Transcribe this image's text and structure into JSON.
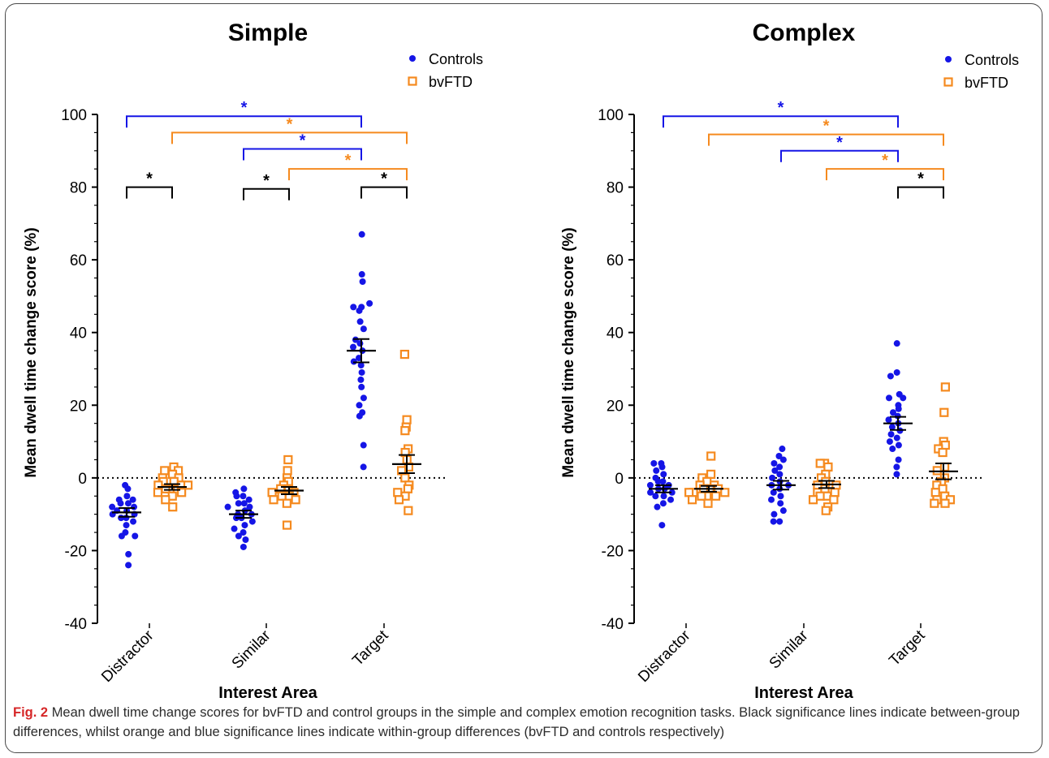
{
  "caption": {
    "figno": "Fig. 2",
    "text": "Mean dwell time change scores for bvFTD and control groups in the simple and complex emotion recognition tasks. Black significance lines indicate between-group differences, whilst orange and blue significance lines indicate within-group differences (bvFTD and controls respectively)"
  },
  "colors": {
    "controls": "#1515e6",
    "bvftd": "#f58a1f",
    "between": "#000000",
    "text": "#000000"
  },
  "chart_data": [
    {
      "type": "scatter",
      "title": "Simple",
      "xlabel": "Interest Area",
      "ylabel": "Mean dwell time change score (%)",
      "categories": [
        "Distractor",
        "Similar",
        "Target"
      ],
      "ylim": [
        -40,
        100
      ],
      "yticks": [
        -40,
        -20,
        0,
        20,
        40,
        60,
        80,
        100
      ],
      "reference_line_y": 0,
      "legend": {
        "position": "top-right",
        "entries": [
          "Controls",
          "bvFTD"
        ]
      },
      "series": [
        {
          "name": "Controls",
          "marker": "filled-circle",
          "values": {
            "Distractor": [
              -2,
              -3,
              -5,
              -6,
              -6,
              -7,
              -7,
              -8,
              -8,
              -9,
              -9,
              -10,
              -10,
              -11,
              -11,
              -12,
              -13,
              -15,
              -16,
              -16,
              -21,
              -24
            ],
            "Similar": [
              -3,
              -4,
              -5,
              -5,
              -6,
              -7,
              -7,
              -8,
              -8,
              -9,
              -10,
              -10,
              -11,
              -11,
              -12,
              -13,
              -14,
              -15,
              -16,
              -17,
              -19
            ],
            "Target": [
              3,
              9,
              17,
              18,
              20,
              22,
              25,
              27,
              29,
              31,
              32,
              33,
              35,
              36,
              37,
              38,
              41,
              43,
              46,
              47,
              47,
              48,
              54,
              56,
              67
            ]
          },
          "mean": {
            "Distractor": -9.5,
            "Similar": -10,
            "Target": 35
          },
          "sem": {
            "Distractor": 1.2,
            "Similar": 1.0,
            "Target": 3.2
          }
        },
        {
          "name": "bvFTD",
          "marker": "open-square",
          "values": {
            "Distractor": [
              3,
              2,
              2,
              1,
              0,
              0,
              -1,
              -1,
              -2,
              -2,
              -2,
              -3,
              -3,
              -4,
              -4,
              -5,
              -6,
              -8
            ],
            "Similar": [
              5,
              2,
              0,
              -1,
              -2,
              -3,
              -3,
              -4,
              -4,
              -5,
              -5,
              -6,
              -6,
              -7,
              -13
            ],
            "Target": [
              34,
              16,
              14,
              13,
              8,
              7,
              5,
              3,
              2,
              0,
              -2,
              -3,
              -4,
              -5,
              -6,
              -9
            ]
          },
          "mean": {
            "Distractor": -2.5,
            "Similar": -3.5,
            "Target": 3.8
          },
          "sem": {
            "Distractor": 0.8,
            "Similar": 1.0,
            "Target": 2.5
          }
        }
      ],
      "significance": [
        {
          "from": "Controls@Distractor",
          "to": "Controls@Target",
          "y": 99.5,
          "color": "controls",
          "label": "*"
        },
        {
          "from": "bvFTD@Distractor",
          "to": "bvFTD@Target",
          "y": 95,
          "color": "bvftd",
          "label": "*"
        },
        {
          "from": "Controls@Similar",
          "to": "Controls@Target",
          "y": 90.5,
          "color": "controls",
          "label": "*"
        },
        {
          "from": "bvFTD@Similar",
          "to": "bvFTD@Target",
          "y": 85,
          "color": "bvftd",
          "label": "*"
        },
        {
          "from": "Controls@Distractor",
          "to": "bvFTD@Distractor",
          "y": 80,
          "color": "between",
          "label": "*"
        },
        {
          "from": "Controls@Similar",
          "to": "bvFTD@Similar",
          "y": 79.5,
          "color": "between",
          "label": "*"
        },
        {
          "from": "Controls@Target",
          "to": "bvFTD@Target",
          "y": 80,
          "color": "between",
          "label": "*"
        }
      ]
    },
    {
      "type": "scatter",
      "title": "Complex",
      "xlabel": "Interest Area",
      "ylabel": "Mean dwell time change score (%)",
      "categories": [
        "Distractor",
        "Similar",
        "Target"
      ],
      "ylim": [
        -40,
        100
      ],
      "yticks": [
        -40,
        -20,
        0,
        20,
        40,
        60,
        80,
        100
      ],
      "reference_line_y": 0,
      "legend": {
        "position": "top-right",
        "entries": [
          "Controls",
          "bvFTD"
        ]
      },
      "series": [
        {
          "name": "Controls",
          "marker": "filled-circle",
          "values": {
            "Distractor": [
              4,
              4,
              3,
              2,
              1,
              0,
              -1,
              -1,
              -2,
              -2,
              -3,
              -3,
              -4,
              -4,
              -5,
              -5,
              -6,
              -7,
              -8,
              -13
            ],
            "Similar": [
              8,
              6,
              5,
              4,
              3,
              2,
              1,
              0,
              -1,
              -2,
              -2,
              -3,
              -4,
              -5,
              -6,
              -7,
              -9,
              -10,
              -12,
              -12
            ],
            "Target": [
              37,
              29,
              28,
              23,
              22,
              22,
              20,
              19,
              18,
              17,
              16,
              15,
              14,
              13,
              12,
              11,
              10,
              9,
              8,
              5,
              3,
              1
            ]
          },
          "mean": {
            "Distractor": -3,
            "Similar": -2,
            "Target": 15
          },
          "sem": {
            "Distractor": 1.0,
            "Similar": 1.2,
            "Target": 1.8
          }
        },
        {
          "name": "bvFTD",
          "marker": "open-square",
          "values": {
            "Distractor": [
              6,
              1,
              0,
              -1,
              -2,
              -2,
              -3,
              -3,
              -3,
              -4,
              -4,
              -4,
              -5,
              -5,
              -5,
              -6,
              -7
            ],
            "Similar": [
              4,
              4,
              3,
              1,
              0,
              -1,
              -2,
              -2,
              -3,
              -4,
              -4,
              -5,
              -5,
              -6,
              -6,
              -8,
              -9
            ],
            "Target": [
              25,
              18,
              10,
              9,
              8,
              7,
              3,
              2,
              0,
              -1,
              -2,
              -3,
              -4,
              -5,
              -6,
              -6,
              -7,
              -7
            ]
          },
          "mean": {
            "Distractor": -3,
            "Similar": -1.8,
            "Target": 1.8
          },
          "sem": {
            "Distractor": 0.8,
            "Similar": 1.0,
            "Target": 2.2
          }
        }
      ],
      "significance": [
        {
          "from": "Controls@Distractor",
          "to": "Controls@Target",
          "y": 99.5,
          "color": "controls",
          "label": "*"
        },
        {
          "from": "bvFTD@Distractor",
          "to": "bvFTD@Target",
          "y": 94.5,
          "color": "bvftd",
          "label": "*"
        },
        {
          "from": "Controls@Similar",
          "to": "Controls@Target",
          "y": 90,
          "color": "controls",
          "label": "*"
        },
        {
          "from": "bvFTD@Similar",
          "to": "bvFTD@Target",
          "y": 85,
          "color": "bvftd",
          "label": "*"
        },
        {
          "from": "Controls@Target",
          "to": "bvFTD@Target",
          "y": 80,
          "color": "between",
          "label": "*"
        }
      ]
    }
  ]
}
